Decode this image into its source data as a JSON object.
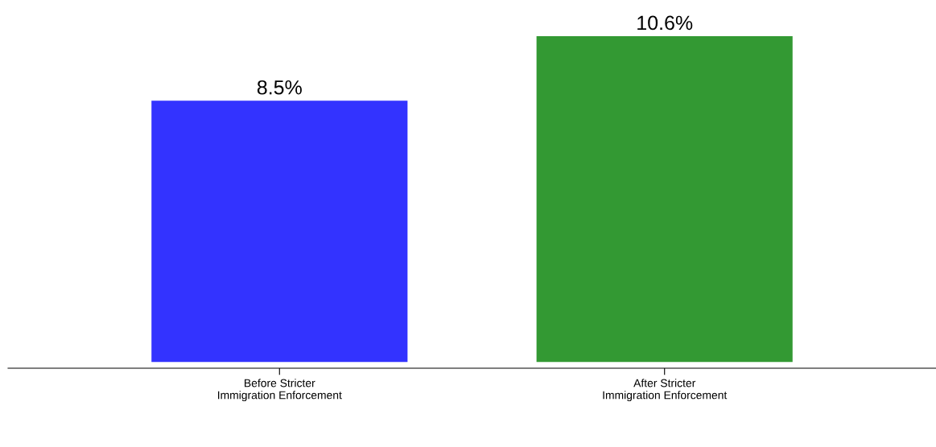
{
  "chart_data": {
    "type": "bar",
    "categories": [
      "Before Stricter\nImmigration Enforcement",
      "After Stricter\nImmigration Enforcement"
    ],
    "values": [
      8.5,
      10.6
    ],
    "colors": [
      "#3333ff",
      "#339933"
    ],
    "value_labels": [
      "8.5%",
      "10.6%"
    ]
  }
}
